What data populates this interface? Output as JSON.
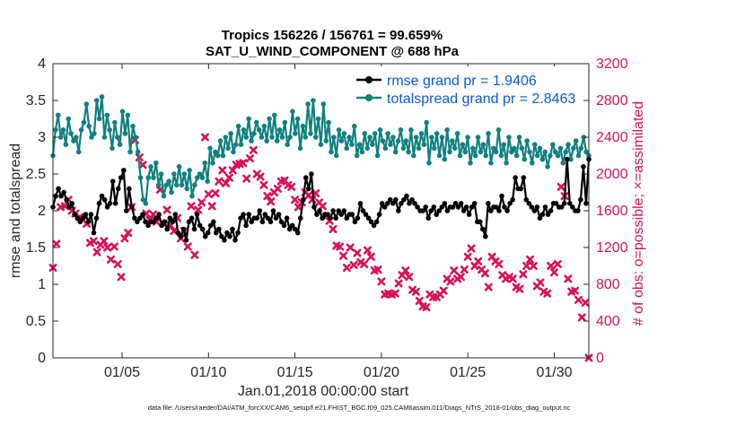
{
  "chart_data": {
    "type": "line",
    "title": "Tropics 156226 / 156761 = 99.659%",
    "subtitle": "SAT_U_WIND_COMPONENT @ 688 hPa",
    "xlabel": "Jan.01,2018 00:00:00 start",
    "ylabel_left": "rmse and totalspread",
    "ylabel_right": "# of obs: o=possible; ×=assimilated",
    "x_range_days": [
      1,
      32
    ],
    "x_ticks": [
      {
        "day": 5,
        "label": "01/05"
      },
      {
        "day": 10,
        "label": "01/10"
      },
      {
        "day": 15,
        "label": "01/15"
      },
      {
        "day": 20,
        "label": "01/20"
      },
      {
        "day": 25,
        "label": "01/25"
      },
      {
        "day": 30,
        "label": "01/30"
      }
    ],
    "ylim_left": [
      0,
      4
    ],
    "y_ticks_left": [
      "0",
      "0.5",
      "1",
      "1.5",
      "2",
      "2.5",
      "3",
      "3.5",
      "4"
    ],
    "ylim_right": [
      0,
      3200
    ],
    "y_ticks_right": [
      "0",
      "400",
      "800",
      "1200",
      "1600",
      "2000",
      "2400",
      "2800",
      "3200"
    ],
    "grid": false,
    "legend_position": "top-right",
    "colors": {
      "rmse": "#000000",
      "spread": "#11807f",
      "obs": "#d6125a",
      "legend_text": "#0a5ad6"
    },
    "series": [
      {
        "name": "rmse grand pr = 1.9406",
        "axis": "left",
        "values": [
          2.05,
          2.2,
          2.3,
          2.2,
          2.25,
          2.15,
          2.05,
          2.1,
          1.95,
          1.9,
          1.85,
          1.9,
          1.95,
          1.85,
          1.95,
          1.7,
          1.9,
          2.1,
          2.2,
          2.15,
          2.05,
          2.1,
          2.4,
          2.1,
          2.3,
          2.45,
          2.55,
          2.0,
          2.3,
          2.05,
          1.9,
          1.85,
          1.9,
          1.95,
          1.85,
          1.8,
          1.85,
          1.85,
          1.9,
          1.95,
          1.8,
          1.85,
          1.75,
          1.9,
          1.85,
          1.95,
          1.7,
          1.65,
          1.75,
          1.6,
          1.85,
          1.9,
          1.75,
          1.95,
          1.8,
          1.75,
          1.65,
          1.7,
          1.8,
          1.85,
          1.7,
          1.75,
          1.65,
          1.6,
          1.7,
          1.65,
          1.75,
          1.6,
          1.7,
          1.9,
          1.95,
          1.8,
          1.95,
          1.85,
          1.9,
          1.9,
          2.0,
          1.85,
          1.95,
          1.9,
          1.85,
          2.0,
          1.9,
          1.95,
          1.85,
          1.8,
          1.9,
          1.75,
          1.8,
          1.75,
          1.7,
          1.9,
          2.15,
          2.45,
          2.3,
          2.5,
          2.05,
          1.95,
          2.0,
          1.9,
          1.95,
          1.95,
          1.9,
          2.0,
          1.9,
          2.0,
          1.95,
          2.0,
          1.9,
          1.95,
          1.95,
          1.85,
          1.9,
          2.1,
          2.0,
          1.95,
          1.9,
          1.85,
          1.8,
          1.85,
          1.95,
          2.1,
          2.05,
          2.1,
          2.15,
          2.1,
          2.15,
          2.0,
          2.1,
          2.15,
          2.2,
          2.1,
          2.15,
          2.1,
          2.05,
          2.0,
          2.0,
          2.05,
          1.9,
          2.0,
          2.05,
          1.95,
          2.0,
          2.05,
          2.1,
          2.0,
          2.05,
          2.05,
          2.1,
          2.05,
          2.1,
          2.0,
          2.05,
          1.95,
          2.05,
          2.1,
          1.85,
          1.85,
          1.75,
          1.65,
          2.1,
          2.0,
          2.05,
          2.05,
          2.0,
          2.2,
          2.05,
          2.0,
          2.1,
          2.15,
          2.45,
          2.3,
          2.3,
          2.45,
          2.15,
          2.1,
          2.05,
          2.0,
          2.05,
          1.9,
          1.95,
          2.05,
          1.95,
          2.0,
          2.1,
          2.1,
          2.05,
          2.05,
          2.1,
          2.7,
          2.1,
          2.05,
          2.0,
          2.0,
          2.15,
          2.6,
          2.1,
          2.7
        ]
      },
      {
        "name": "totalspread grand pr = 2.8463",
        "axis": "left",
        "values": [
          2.75,
          3.1,
          3.3,
          3.0,
          3.1,
          2.9,
          3.25,
          3.05,
          2.95,
          3.0,
          2.8,
          3.1,
          3.2,
          3.45,
          3.15,
          3.0,
          3.05,
          3.5,
          3.25,
          3.55,
          3.0,
          3.3,
          3.1,
          2.85,
          3.2,
          3.0,
          2.9,
          3.35,
          3.05,
          3.3,
          2.8,
          3.15,
          3.0,
          2.8,
          2.45,
          2.15,
          2.1,
          2.45,
          2.6,
          2.45,
          2.65,
          2.35,
          2.5,
          2.2,
          2.35,
          2.4,
          2.25,
          2.5,
          2.35,
          2.6,
          2.35,
          2.5,
          2.3,
          2.55,
          2.2,
          2.35,
          2.45,
          2.5,
          2.45,
          2.65,
          2.4,
          2.85,
          2.65,
          2.8,
          2.75,
          2.95,
          2.75,
          3.0,
          2.85,
          3.05,
          2.8,
          2.9,
          3.15,
          2.9,
          3.1,
          3.0,
          3.25,
          2.95,
          3.05,
          3.2,
          3.1,
          3.0,
          3.15,
          2.95,
          3.25,
          3.0,
          3.3,
          2.95,
          3.1,
          3.0,
          3.2,
          2.9,
          3.0,
          3.35,
          3.05,
          3.25,
          2.85,
          3.15,
          3.0,
          3.45,
          3.05,
          3.5,
          3.0,
          3.25,
          2.9,
          3.45,
          2.95,
          3.2,
          2.8,
          3.0,
          2.75,
          3.1,
          2.95,
          3.05,
          2.85,
          3.0,
          2.9,
          3.15,
          2.75,
          2.9,
          2.8,
          3.05,
          2.85,
          3.0,
          2.9,
          3.05,
          2.75,
          3.1,
          2.95,
          2.85,
          3.05,
          2.9,
          3.0,
          2.8,
          2.95,
          3.1,
          2.85,
          2.95,
          2.8,
          3.1,
          2.75,
          3.0,
          2.85,
          3.05,
          2.9,
          3.2,
          2.65,
          3.0,
          2.85,
          3.05,
          2.75,
          3.0,
          2.7,
          3.1,
          2.8,
          2.95,
          2.85,
          3.05,
          2.75,
          2.9,
          2.8,
          3.0,
          2.65,
          2.85,
          2.75,
          3.0,
          2.8,
          2.9,
          2.75,
          3.05,
          2.65,
          2.85,
          2.8,
          3.1,
          2.75,
          2.9,
          2.65,
          3.0,
          2.8,
          2.85,
          2.75,
          3.0,
          2.85,
          2.7,
          2.95,
          2.8,
          2.65,
          2.9,
          2.75,
          2.85,
          2.7,
          2.8,
          2.6,
          2.75,
          2.9,
          2.8,
          2.75,
          2.85,
          2.65,
          2.8,
          2.9,
          2.7,
          2.85,
          2.95,
          2.75,
          2.85,
          3.0,
          2.8,
          2.75
        ]
      },
      {
        "name": "# assimilated",
        "axis": "right",
        "values": [
          {
            "d": 1.0,
            "v": 980
          },
          {
            "d": 1.2,
            "v": 1240
          },
          {
            "d": 1.45,
            "v": 1640
          },
          {
            "d": 1.7,
            "v": 1650
          },
          {
            "d": 1.9,
            "v": 1720
          },
          {
            "d": 2.1,
            "v": 1600
          },
          {
            "d": 2.3,
            "v": 1570
          },
          {
            "d": 2.55,
            "v": 1530
          },
          {
            "d": 2.75,
            "v": 1500
          },
          {
            "d": 2.95,
            "v": 1460
          },
          {
            "d": 3.15,
            "v": 1250
          },
          {
            "d": 3.35,
            "v": 1270
          },
          {
            "d": 3.55,
            "v": 1150
          },
          {
            "d": 3.75,
            "v": 1230
          },
          {
            "d": 3.95,
            "v": 1270
          },
          {
            "d": 4.15,
            "v": 1200
          },
          {
            "d": 4.35,
            "v": 1070
          },
          {
            "d": 4.55,
            "v": 1210
          },
          {
            "d": 4.75,
            "v": 1020
          },
          {
            "d": 4.95,
            "v": 880
          },
          {
            "d": 5.15,
            "v": 1300
          },
          {
            "d": 5.35,
            "v": 1360
          },
          {
            "d": 5.55,
            "v": 1640
          },
          {
            "d": 5.75,
            "v": 2370
          },
          {
            "d": 6.0,
            "v": 2180
          },
          {
            "d": 6.2,
            "v": 2100
          },
          {
            "d": 6.4,
            "v": 1570
          },
          {
            "d": 6.6,
            "v": 1500
          },
          {
            "d": 6.8,
            "v": 1560
          },
          {
            "d": 7.0,
            "v": 1480
          },
          {
            "d": 7.2,
            "v": 1830
          },
          {
            "d": 7.4,
            "v": 1460
          },
          {
            "d": 7.6,
            "v": 1610
          },
          {
            "d": 7.8,
            "v": 1440
          },
          {
            "d": 8.0,
            "v": 1380
          },
          {
            "d": 8.2,
            "v": 1520
          },
          {
            "d": 8.4,
            "v": 1300
          },
          {
            "d": 8.6,
            "v": 1380
          },
          {
            "d": 8.8,
            "v": 1210
          },
          {
            "d": 9.0,
            "v": 1650
          },
          {
            "d": 9.2,
            "v": 1120
          },
          {
            "d": 9.4,
            "v": 1610
          },
          {
            "d": 9.6,
            "v": 1690
          },
          {
            "d": 9.8,
            "v": 2400
          },
          {
            "d": 10.0,
            "v": 1780
          },
          {
            "d": 10.2,
            "v": 1650
          },
          {
            "d": 10.4,
            "v": 1790
          },
          {
            "d": 10.6,
            "v": 1920
          },
          {
            "d": 10.8,
            "v": 2040
          },
          {
            "d": 11.0,
            "v": 1900
          },
          {
            "d": 11.2,
            "v": 1960
          },
          {
            "d": 11.4,
            "v": 2040
          },
          {
            "d": 11.6,
            "v": 2100
          },
          {
            "d": 11.8,
            "v": 2110
          },
          {
            "d": 12.0,
            "v": 2120
          },
          {
            "d": 12.2,
            "v": 1950
          },
          {
            "d": 12.4,
            "v": 2170
          },
          {
            "d": 12.6,
            "v": 2260
          },
          {
            "d": 12.8,
            "v": 2000
          },
          {
            "d": 13.0,
            "v": 1970
          },
          {
            "d": 13.2,
            "v": 1880
          },
          {
            "d": 13.4,
            "v": 1760
          },
          {
            "d": 13.6,
            "v": 1700
          },
          {
            "d": 13.8,
            "v": 1800
          },
          {
            "d": 14.0,
            "v": 1840
          },
          {
            "d": 14.2,
            "v": 1920
          },
          {
            "d": 14.4,
            "v": 1930
          },
          {
            "d": 14.6,
            "v": 1880
          },
          {
            "d": 14.8,
            "v": 1860
          },
          {
            "d": 15.0,
            "v": 1720
          },
          {
            "d": 15.2,
            "v": 1640
          },
          {
            "d": 15.4,
            "v": 1690
          },
          {
            "d": 15.6,
            "v": 1800
          },
          {
            "d": 15.8,
            "v": 1770
          },
          {
            "d": 16.0,
            "v": 1720
          },
          {
            "d": 16.2,
            "v": 1790
          },
          {
            "d": 16.4,
            "v": 1690
          },
          {
            "d": 16.6,
            "v": 1650
          },
          {
            "d": 16.8,
            "v": 1540
          },
          {
            "d": 17.0,
            "v": 1490
          },
          {
            "d": 17.2,
            "v": 1400
          },
          {
            "d": 17.4,
            "v": 1220
          },
          {
            "d": 17.6,
            "v": 1210
          },
          {
            "d": 17.8,
            "v": 1110
          },
          {
            "d": 18.0,
            "v": 980
          },
          {
            "d": 18.2,
            "v": 1200
          },
          {
            "d": 18.4,
            "v": 1010
          },
          {
            "d": 18.6,
            "v": 1140
          },
          {
            "d": 18.8,
            "v": 1040
          },
          {
            "d": 19.0,
            "v": 1020
          },
          {
            "d": 19.2,
            "v": 1170
          },
          {
            "d": 19.4,
            "v": 1100
          },
          {
            "d": 19.6,
            "v": 950
          },
          {
            "d": 19.8,
            "v": 960
          },
          {
            "d": 20.0,
            "v": 830
          },
          {
            "d": 20.2,
            "v": 690
          },
          {
            "d": 20.4,
            "v": 700
          },
          {
            "d": 20.6,
            "v": 690
          },
          {
            "d": 20.8,
            "v": 700
          },
          {
            "d": 21.0,
            "v": 810
          },
          {
            "d": 21.2,
            "v": 900
          },
          {
            "d": 21.4,
            "v": 950
          },
          {
            "d": 21.6,
            "v": 880
          },
          {
            "d": 21.8,
            "v": 740
          },
          {
            "d": 22.0,
            "v": 720
          },
          {
            "d": 22.2,
            "v": 620
          },
          {
            "d": 22.4,
            "v": 560
          },
          {
            "d": 22.6,
            "v": 550
          },
          {
            "d": 22.8,
            "v": 690
          },
          {
            "d": 23.0,
            "v": 660
          },
          {
            "d": 23.2,
            "v": 660
          },
          {
            "d": 23.4,
            "v": 690
          },
          {
            "d": 23.6,
            "v": 730
          },
          {
            "d": 23.8,
            "v": 860
          },
          {
            "d": 24.0,
            "v": 830
          },
          {
            "d": 24.2,
            "v": 950
          },
          {
            "d": 24.4,
            "v": 860
          },
          {
            "d": 24.6,
            "v": 880
          },
          {
            "d": 24.8,
            "v": 960
          },
          {
            "d": 25.0,
            "v": 1100
          },
          {
            "d": 25.2,
            "v": 1190
          },
          {
            "d": 25.4,
            "v": 1000
          },
          {
            "d": 25.6,
            "v": 1050
          },
          {
            "d": 25.8,
            "v": 960
          },
          {
            "d": 26.0,
            "v": 920
          },
          {
            "d": 26.2,
            "v": 770
          },
          {
            "d": 26.4,
            "v": 1100
          },
          {
            "d": 26.6,
            "v": 1050
          },
          {
            "d": 26.8,
            "v": 1020
          },
          {
            "d": 27.0,
            "v": 900
          },
          {
            "d": 27.2,
            "v": 860
          },
          {
            "d": 27.4,
            "v": 880
          },
          {
            "d": 27.6,
            "v": 860
          },
          {
            "d": 27.8,
            "v": 770
          },
          {
            "d": 28.0,
            "v": 750
          },
          {
            "d": 28.2,
            "v": 910
          },
          {
            "d": 28.4,
            "v": 1000
          },
          {
            "d": 28.6,
            "v": 1070
          },
          {
            "d": 28.8,
            "v": 1000
          },
          {
            "d": 29.0,
            "v": 780
          },
          {
            "d": 29.2,
            "v": 820
          },
          {
            "d": 29.4,
            "v": 720
          },
          {
            "d": 29.6,
            "v": 700
          },
          {
            "d": 29.8,
            "v": 1000
          },
          {
            "d": 30.0,
            "v": 930
          },
          {
            "d": 30.2,
            "v": 1020
          },
          {
            "d": 30.4,
            "v": 1860
          },
          {
            "d": 30.6,
            "v": 1760
          },
          {
            "d": 30.8,
            "v": 860
          },
          {
            "d": 31.0,
            "v": 720
          },
          {
            "d": 31.2,
            "v": 730
          },
          {
            "d": 31.4,
            "v": 630
          },
          {
            "d": 31.6,
            "v": 440
          },
          {
            "d": 31.8,
            "v": 600
          },
          {
            "d": 32.0,
            "v": 0
          }
        ]
      }
    ]
  },
  "footer": {
    "data_file": "data file: /Users/raeder/DAI/ATM_forcXX/CAM6_setup/f.e21.FHIST_BGC.f09_025.CAM6assim.011/Diags_NTrS_2018-01/obs_diag_output.nc"
  }
}
